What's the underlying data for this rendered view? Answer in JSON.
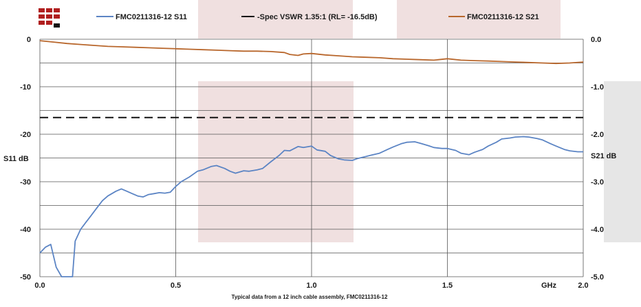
{
  "chart_data": {
    "type": "line",
    "caption": "Typical data from a  12 inch cable assembly, FMC0211316-12",
    "xlabel": "GHz",
    "ylabel": "S11 dB",
    "y2label": "S21 dB",
    "xlim": [
      0,
      2.0
    ],
    "ylim": [
      -50,
      0
    ],
    "y2lim": [
      -5.0,
      0.0
    ],
    "x_ticks": [
      "0.0",
      "0.5",
      "1.0",
      "1.5",
      "2.0"
    ],
    "y_ticks": [
      "0",
      "-10",
      "-20",
      "-30",
      "-40",
      "-50"
    ],
    "y2_ticks": [
      "0.0",
      "-1.0",
      "-2.0",
      "-3.0",
      "-4.0",
      "-5.0"
    ],
    "grid": true,
    "legend_position": "top",
    "series": [
      {
        "name": "FMC0211316-12 S11",
        "axis": "left",
        "color": "#5b84c4",
        "x": [
          0.0,
          0.02,
          0.04,
          0.06,
          0.08,
          0.1,
          0.12,
          0.13,
          0.15,
          0.17,
          0.19,
          0.21,
          0.23,
          0.25,
          0.28,
          0.3,
          0.32,
          0.34,
          0.36,
          0.38,
          0.4,
          0.42,
          0.44,
          0.46,
          0.48,
          0.5,
          0.52,
          0.55,
          0.58,
          0.6,
          0.63,
          0.65,
          0.68,
          0.7,
          0.72,
          0.75,
          0.77,
          0.8,
          0.82,
          0.85,
          0.88,
          0.9,
          0.92,
          0.95,
          0.97,
          1.0,
          1.02,
          1.05,
          1.07,
          1.1,
          1.12,
          1.15,
          1.17,
          1.2,
          1.22,
          1.25,
          1.28,
          1.3,
          1.33,
          1.35,
          1.38,
          1.4,
          1.43,
          1.45,
          1.48,
          1.5,
          1.53,
          1.55,
          1.58,
          1.6,
          1.63,
          1.65,
          1.68,
          1.7,
          1.73,
          1.75,
          1.78,
          1.8,
          1.83,
          1.85,
          1.88,
          1.9,
          1.93,
          1.95,
          1.98,
          2.0
        ],
        "values": [
          -45,
          -43.8,
          -43.2,
          -48,
          -52,
          -56,
          -51,
          -42.5,
          -40,
          -38.5,
          -37,
          -35.5,
          -34,
          -33,
          -32,
          -31.5,
          -32,
          -32.5,
          -33,
          -33.2,
          -32.7,
          -32.5,
          -32.3,
          -32.4,
          -32.2,
          -31,
          -30,
          -29,
          -27.8,
          -27.5,
          -26.8,
          -26.6,
          -27.2,
          -27.8,
          -28.2,
          -27.7,
          -27.8,
          -27.5,
          -27.2,
          -25.8,
          -24.5,
          -23.4,
          -23.5,
          -22.6,
          -22.8,
          -22.5,
          -23.3,
          -23.6,
          -24.5,
          -25.2,
          -25.4,
          -25.5,
          -25.1,
          -24.7,
          -24.4,
          -24.0,
          -23.2,
          -22.7,
          -22.0,
          -21.7,
          -21.6,
          -21.9,
          -22.4,
          -22.8,
          -23.0,
          -23.0,
          -23.4,
          -24.0,
          -24.3,
          -23.8,
          -23.2,
          -22.5,
          -21.7,
          -21.0,
          -20.8,
          -20.6,
          -20.5,
          -20.6,
          -20.9,
          -21.2,
          -22.0,
          -22.5,
          -23.2,
          -23.5,
          -23.7,
          -23.7
        ]
      },
      {
        "name": "-Spec VSWR 1.35:1 (RL= -16.5dB)",
        "axis": "left",
        "color": "#111111",
        "dashed": true,
        "x": [
          0.0,
          2.0
        ],
        "values": [
          -16.5,
          -16.5
        ]
      },
      {
        "name": "FMC0211316-12 S21",
        "axis": "right",
        "color": "#b8662b",
        "x": [
          0.0,
          0.05,
          0.1,
          0.15,
          0.2,
          0.25,
          0.3,
          0.35,
          0.4,
          0.45,
          0.5,
          0.55,
          0.6,
          0.65,
          0.7,
          0.75,
          0.8,
          0.85,
          0.9,
          0.92,
          0.95,
          0.97,
          1.0,
          1.05,
          1.1,
          1.15,
          1.2,
          1.25,
          1.3,
          1.35,
          1.4,
          1.45,
          1.5,
          1.55,
          1.6,
          1.65,
          1.7,
          1.75,
          1.8,
          1.85,
          1.9,
          1.95,
          2.0
        ],
        "values": [
          -0.03,
          -0.06,
          -0.09,
          -0.11,
          -0.13,
          -0.15,
          -0.16,
          -0.17,
          -0.18,
          -0.19,
          -0.2,
          -0.21,
          -0.22,
          -0.23,
          -0.24,
          -0.25,
          -0.25,
          -0.26,
          -0.28,
          -0.32,
          -0.34,
          -0.31,
          -0.3,
          -0.33,
          -0.35,
          -0.37,
          -0.38,
          -0.39,
          -0.41,
          -0.42,
          -0.43,
          -0.44,
          -0.41,
          -0.44,
          -0.45,
          -0.46,
          -0.47,
          -0.48,
          -0.49,
          -0.5,
          -0.51,
          -0.5,
          -0.48
        ]
      }
    ]
  },
  "colors": {
    "logo_red": "#b01e1e",
    "logo_black": "#111111",
    "band_pink": "#f0e0e0",
    "band_gray": "#e6e6e6",
    "grid": "#555555"
  },
  "logo_icon": "company-logo-icon"
}
